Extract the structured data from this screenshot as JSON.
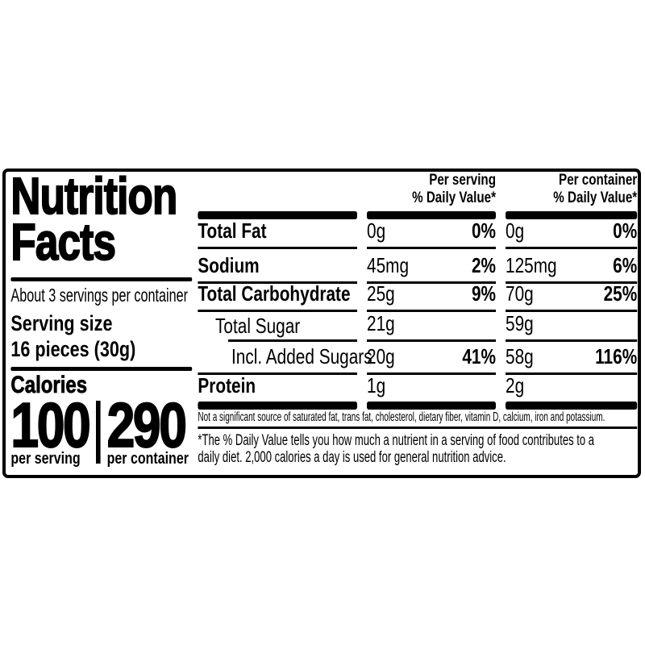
{
  "nutrition_label": {
    "title_lines": [
      "Nutrition",
      "Facts"
    ],
    "servings_per_container": "About 3 servings per container",
    "serving_size_label": "Serving size",
    "serving_size_value": "16 pieces (30g)",
    "calories_label": "Calories",
    "calories": [
      {
        "value": "100",
        "unit": "per serving"
      },
      {
        "value": "290",
        "unit": "per container"
      }
    ],
    "column_headers": [
      {
        "line1": "Per serving",
        "line2": "% Daily Value*"
      },
      {
        "line1": "Per container",
        "line2": "% Daily Value*"
      }
    ],
    "rows": [
      {
        "name": "Total Fat",
        "per_serving": {
          "amount": "0g",
          "dv": "0%"
        },
        "per_container": {
          "amount": "0g",
          "dv": "0%"
        }
      },
      {
        "name": "Sodium",
        "per_serving": {
          "amount": "45mg",
          "dv": "2%"
        },
        "per_container": {
          "amount": "125mg",
          "dv": "6%"
        }
      },
      {
        "name": "Total Carbohydrate",
        "per_serving": {
          "amount": "25g",
          "dv": "9%"
        },
        "per_container": {
          "amount": "70g",
          "dv": "25%"
        }
      },
      {
        "name": "Total Sugar",
        "per_serving": {
          "amount": "21g",
          "dv": ""
        },
        "per_container": {
          "amount": "59g",
          "dv": ""
        }
      },
      {
        "name": "Incl. Added Sugars",
        "per_serving": {
          "amount": "20g",
          "dv": "41%"
        },
        "per_container": {
          "amount": "58g",
          "dv": "116%"
        }
      },
      {
        "name": "Protein",
        "per_serving": {
          "amount": "1g",
          "dv": ""
        },
        "per_container": {
          "amount": "2g",
          "dv": ""
        }
      }
    ],
    "footnote_not_significant": "Not a significant source of saturated fat, trans fat, cholesterol, dietary fiber, vitamin D, calcium, iron and potassium.",
    "footnote_daily_value_lines": [
      "*The % Daily Value tells you how much a nutrient in a serving of food contributes to a",
      "daily diet. 2,000 calories a day is used for general nutrition advice."
    ],
    "colors": {
      "ink": "#000000",
      "background": "#ffffff"
    }
  }
}
